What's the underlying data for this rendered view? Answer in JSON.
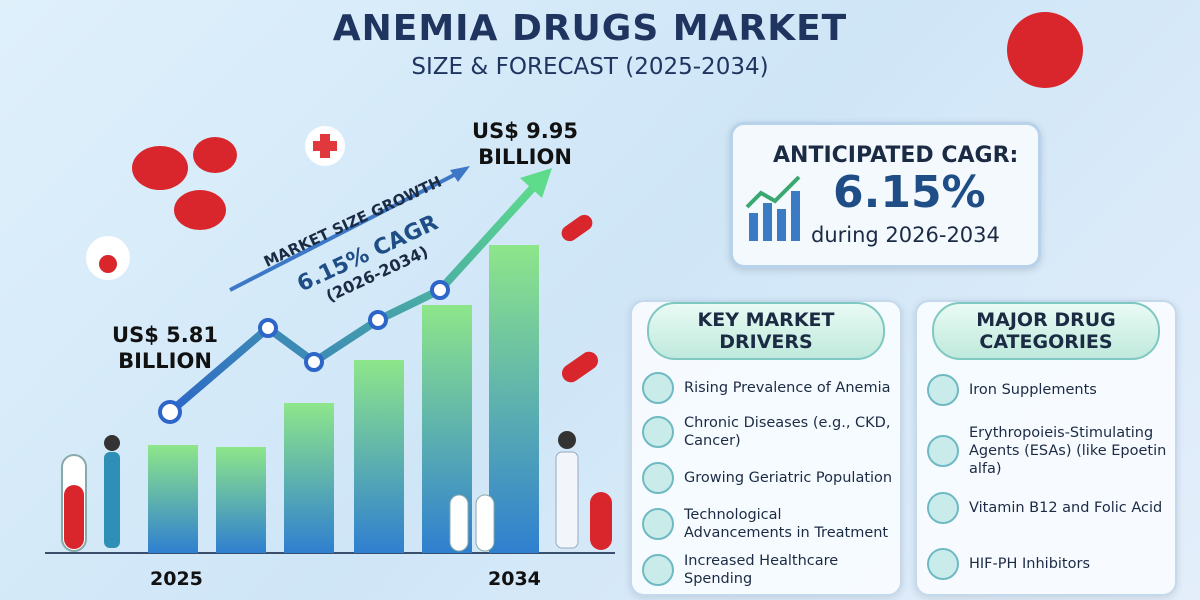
{
  "header": {
    "title": "ANEMIA DRUGS MARKET",
    "subtitle": "SIZE & FORECAST (2025-2034)"
  },
  "growth": {
    "start_value": "US$ 5.81",
    "start_unit": "BILLION",
    "end_value": "US$ 9.95",
    "end_unit": "BILLION",
    "arrow_label": "MARKET SIZE GROWTH",
    "cagr": "6.15% CAGR",
    "period": "(2026-2034)",
    "start_year": "2025",
    "end_year": "2034"
  },
  "cagr_box": {
    "title": "ANTICIPATED CAGR:",
    "value": "6.15%",
    "period": "during 2026-2034"
  },
  "drivers": {
    "title": "KEY MARKET DRIVERS",
    "items": [
      "Rising Prevalence of Anemia",
      "Chronic Diseases (e.g., CKD, Cancer)",
      "Growing Geriatric Population",
      "Technological Advancements in Treatment",
      "Increased Healthcare Spending"
    ]
  },
  "categories": {
    "title": "MAJOR DRUG CATEGORIES",
    "items": [
      "Iron Supplements",
      "Erythropoieis-Stimulating Agents (ESAs) (like Epoetin alfa)",
      "Vitamin B12 and Folic Acid",
      "HIF-PH Inhibitors"
    ]
  }
}
